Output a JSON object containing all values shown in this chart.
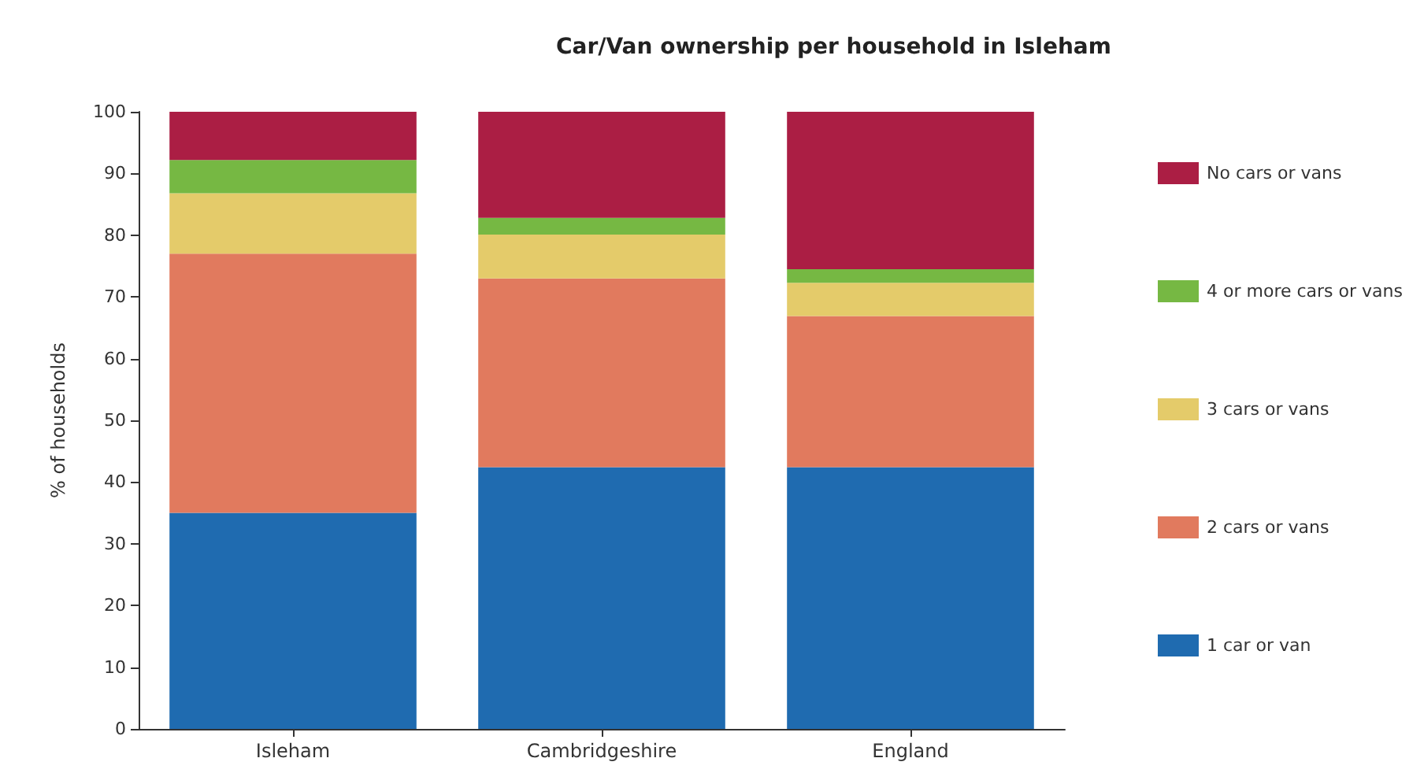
{
  "chart_data": {
    "type": "bar",
    "title": "Car/Van ownership per household in Isleham",
    "ylabel": "% of households",
    "categories": [
      "Isleham",
      "Cambridgeshire",
      "England"
    ],
    "stacked": true,
    "ylim": [
      0,
      100
    ],
    "yticks": [
      0,
      10,
      20,
      30,
      40,
      50,
      60,
      70,
      80,
      90,
      100
    ],
    "grid": false,
    "legend": "right",
    "series": [
      {
        "name": "1 car or van",
        "color": "#1f6bb0",
        "values": [
          35.0,
          42.4,
          42.4
        ]
      },
      {
        "name": "2 cars or vans",
        "color": "#e17a5e",
        "values": [
          42.0,
          30.6,
          24.5
        ]
      },
      {
        "name": "3 cars or vans",
        "color": "#e4cb6a",
        "values": [
          9.8,
          7.1,
          5.4
        ]
      },
      {
        "name": "4 or more cars or vans",
        "color": "#76b843",
        "values": [
          5.4,
          2.7,
          2.2
        ]
      },
      {
        "name": "No cars or vans",
        "color": "#ab1e44",
        "values": [
          7.8,
          17.2,
          25.5
        ]
      }
    ]
  }
}
